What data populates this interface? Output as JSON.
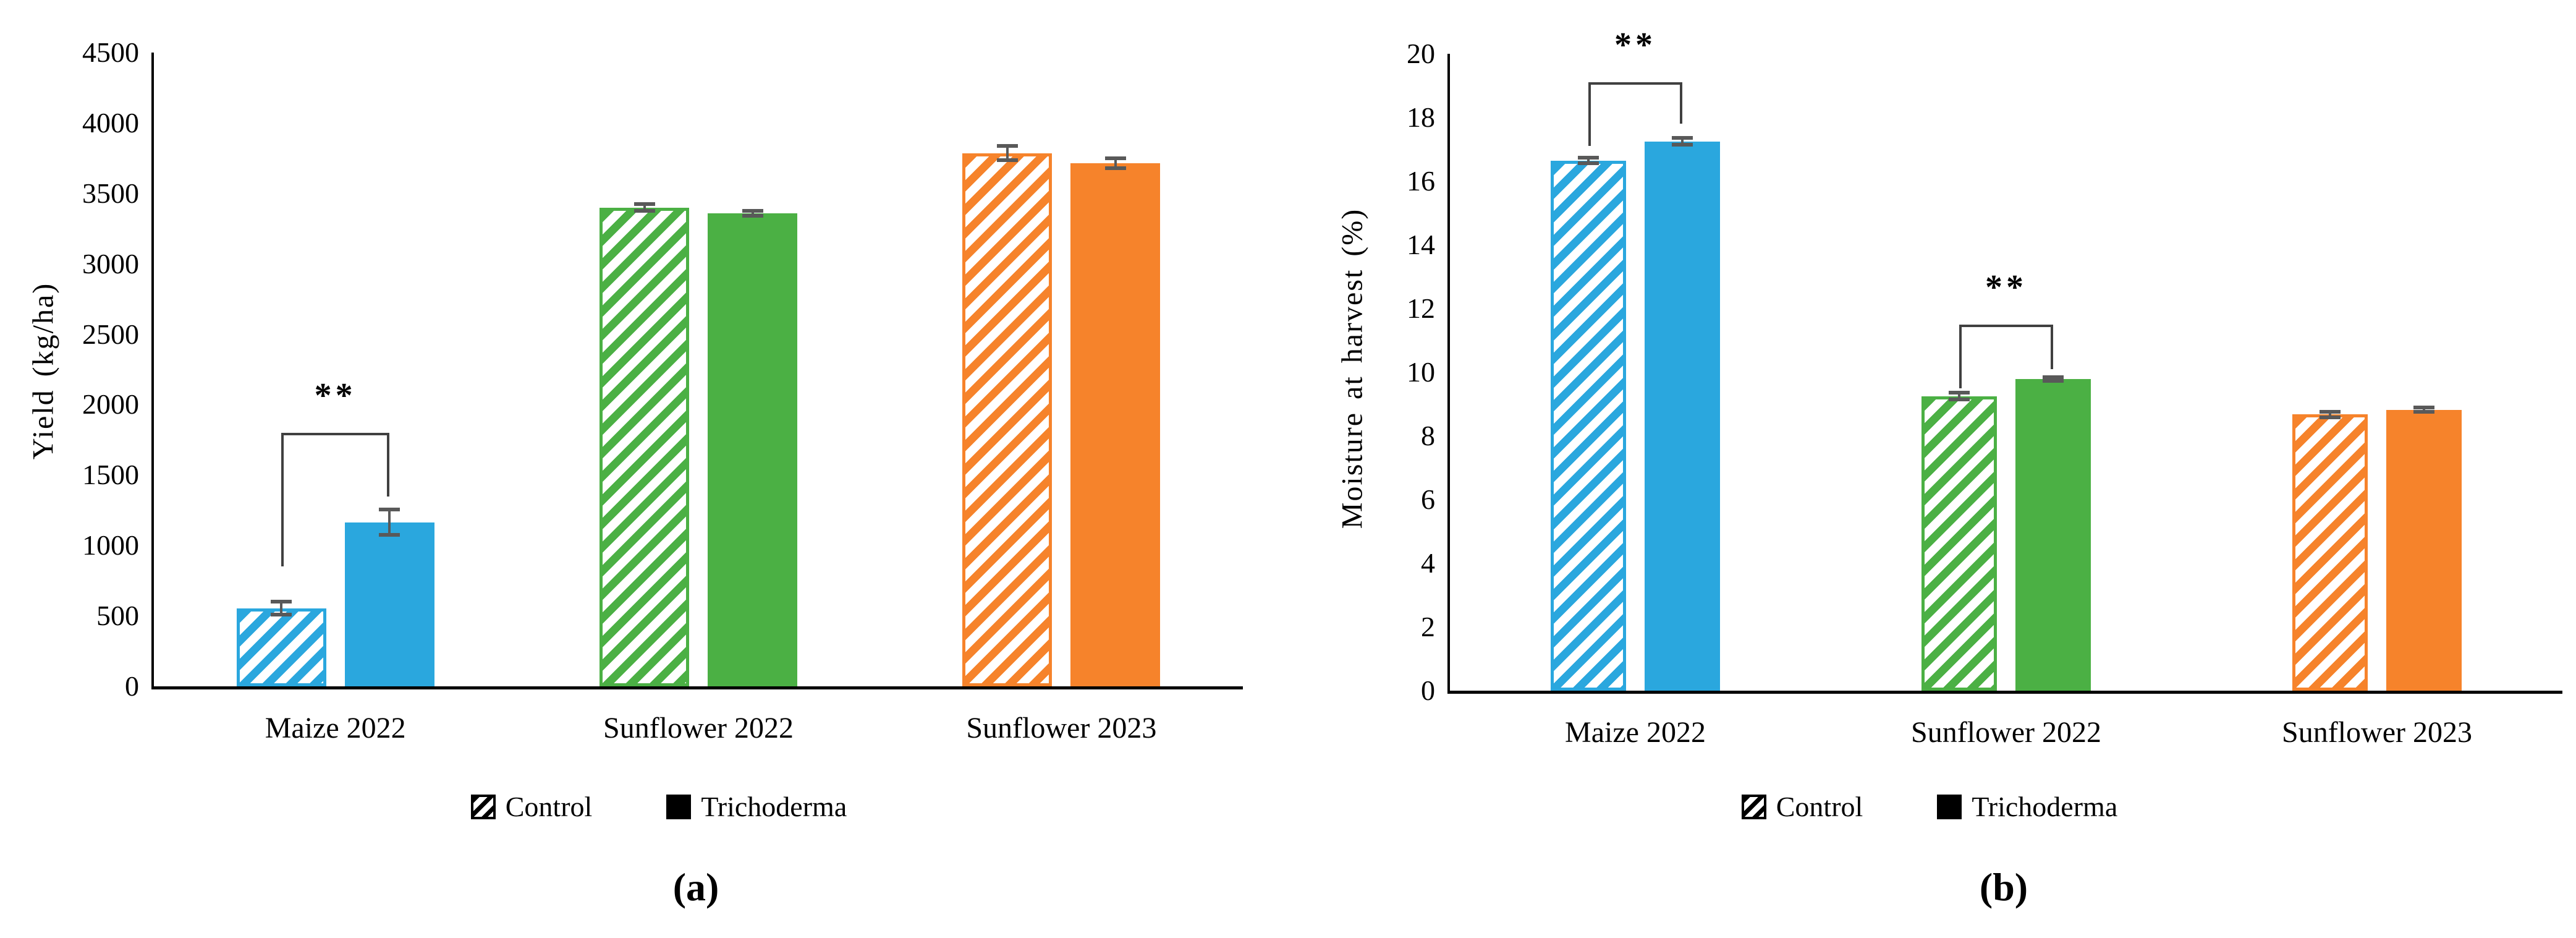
{
  "chart_data": [
    {
      "type": "bar",
      "panel": "a",
      "caption": "(a)",
      "title": "",
      "xlabel": "",
      "ylabel": "Yield (kg/ha)",
      "ylim": [
        0,
        4500
      ],
      "y_tick_step": 500,
      "y_ticks": [
        "0",
        "500",
        "1000",
        "1500",
        "2000",
        "2500",
        "3000",
        "3500",
        "4000",
        "4500"
      ],
      "categories": [
        "Maize 2022",
        "Sunflower 2022",
        "Sunflower 2023"
      ],
      "series": [
        {
          "name": "Control",
          "pattern": "hatched",
          "values": [
            555,
            3400,
            3785
          ],
          "errors": [
            45,
            25,
            50
          ]
        },
        {
          "name": "Trichoderma",
          "pattern": "solid",
          "values": [
            1165,
            3360,
            3715
          ],
          "errors": [
            90,
            18,
            35
          ]
        }
      ],
      "bar_colors": [
        "#2AA7DE",
        "#4BB044",
        "#F6832B"
      ],
      "significance": [
        {
          "category_index": 0,
          "label": "**",
          "bracket_top": 1800,
          "left_drop_to": 850,
          "right_drop_to": 1350
        }
      ],
      "grid": false,
      "legend_position": "bottom"
    },
    {
      "type": "bar",
      "panel": "b",
      "caption": "(b)",
      "title": "",
      "xlabel": "",
      "ylabel": "Moisture at harvest (%)",
      "ylim": [
        0,
        20
      ],
      "y_tick_step": 2,
      "y_ticks": [
        "0",
        "2",
        "4",
        "6",
        "8",
        "10",
        "12",
        "14",
        "16",
        "18",
        "20"
      ],
      "categories": [
        "Maize 2022",
        "Sunflower 2022",
        "Sunflower 2023"
      ],
      "series": [
        {
          "name": "Control",
          "pattern": "hatched",
          "values": [
            16.65,
            9.25,
            8.67
          ],
          "errors": [
            0.08,
            0.1,
            0.08
          ]
        },
        {
          "name": "Trichoderma",
          "pattern": "solid",
          "values": [
            17.25,
            9.78,
            8.82
          ],
          "errors": [
            0.1,
            0.06,
            0.07
          ]
        }
      ],
      "bar_colors": [
        "#2AA7DE",
        "#4BB044",
        "#F6832B"
      ],
      "significance": [
        {
          "category_index": 0,
          "label": "**",
          "bracket_top": 19.1,
          "left_drop_to": 17.1,
          "right_drop_to": 17.8
        },
        {
          "category_index": 1,
          "label": "**",
          "bracket_top": 11.5,
          "left_drop_to": 9.5,
          "right_drop_to": 10.1
        }
      ],
      "grid": false,
      "legend_position": "bottom"
    }
  ],
  "legend": {
    "items": [
      {
        "label": "Control",
        "pattern": "hatched"
      },
      {
        "label": "Trichoderma",
        "pattern": "solid"
      }
    ]
  },
  "styles": {
    "error_bar_color": "#595959",
    "bracket_color": "#404040",
    "axis_color": "#000000",
    "legend_marker_color": "#000000"
  }
}
